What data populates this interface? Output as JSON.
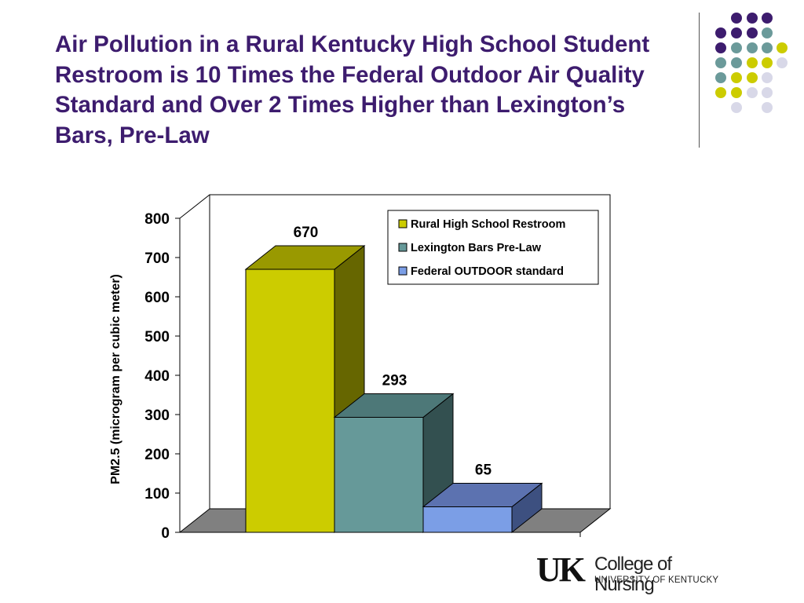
{
  "slide": {
    "title": "Air Pollution in a Rural Kentucky High School Student Restroom is 10 Times the Federal Outdoor Air Quality Standard and Over 2 Times Higher than Lexington’s Bars, Pre-Law"
  },
  "logo": {
    "mark": "UK",
    "name": "College of Nursing",
    "institution": "UNIVERSITY OF KENTUCKY"
  },
  "colors": {
    "title": "#3d1c6e",
    "dot_purple": "#3d1c6e",
    "dot_teal": "#6b9a9a",
    "dot_yellow": "#cccc00",
    "dot_lavender": "#d8d8e8"
  },
  "chart_data": {
    "type": "bar",
    "style": "3d",
    "ylabel": "PM2.5 (microgram per cubic meter)",
    "ylim": [
      0,
      800
    ],
    "yticks": [
      "0",
      "100",
      "200",
      "300",
      "400",
      "500",
      "600",
      "700",
      "800"
    ],
    "legend_position": "top-right",
    "series": [
      {
        "name": "Rural High School Restroom",
        "value": 670,
        "label": "670",
        "color": "#cccc00",
        "side_color": "#666600",
        "top_color": "#999900"
      },
      {
        "name": "Lexington Bars Pre-Law",
        "value": 293,
        "label": "293",
        "color": "#669999",
        "side_color": "#335050",
        "top_color": "#4d7878"
      },
      {
        "name": "Federal OUTDOOR standard",
        "value": 65,
        "label": "65",
        "color": "#7b9ee6",
        "side_color": "#3d5080",
        "top_color": "#5c72b0"
      }
    ]
  }
}
